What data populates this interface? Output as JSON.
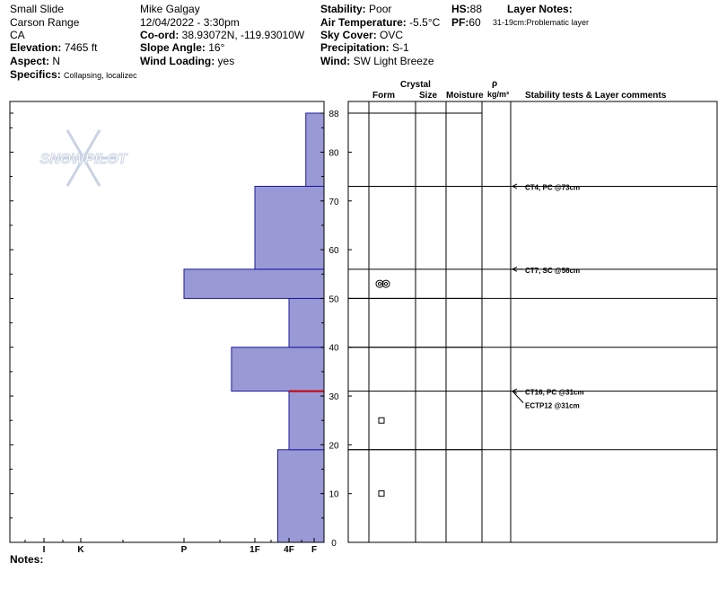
{
  "header": {
    "col1": {
      "title": "Small Slide",
      "range": "Carson Range",
      "state": "CA",
      "elevation_label": "Elevation:",
      "elevation_value": "7465 ft",
      "aspect_label": "Aspect:",
      "aspect_value": "N",
      "specifics_label": "Specifics:",
      "specifics_value": "Collapsing, localizec"
    },
    "col2": {
      "observer": "Mike Galgay",
      "datetime": "12/04/2022 - 3:30pm",
      "coord_label": "Co-ord:",
      "coord_value": "38.93072N, -119.93010W",
      "slope_label": "Slope Angle:",
      "slope_value": "16°",
      "wind_loading_label": "Wind Loading:",
      "wind_loading_value": "yes"
    },
    "col3": {
      "stability_label": "Stability:",
      "stability_value": "Poor",
      "air_temp_label": "Air Temperature:",
      "air_temp_value": "-5.5°C",
      "sky_label": "Sky Cover:",
      "sky_value": "OVC",
      "precip_label": "Precipitation:",
      "precip_value": "S-1",
      "wind_label": "Wind:",
      "wind_value": "SW Light Breeze"
    },
    "col4": {
      "hs_label": "HS:",
      "hs_value": "88",
      "pf_label": "PF:",
      "pf_value": "60"
    },
    "col5": {
      "layer_notes_label": "Layer Notes:",
      "layer_note": "31-19cm:Problematic layer"
    }
  },
  "columns": {
    "crystal": "Crystal",
    "form": "Form",
    "size": "Size",
    "moisture": "Moisture",
    "rho": "ρ",
    "density_unit": "kg/m³",
    "stability": "Stability tests & Layer comments"
  },
  "logo_text": "SNOWPILOT",
  "notes_label": "Notes:",
  "colors": {
    "hardness_fill": "#9999d6",
    "hardness_edge": "#1a1a9e",
    "weak_layer": "#cc0000",
    "logo": "#c9d3e3"
  },
  "chart_data": {
    "type": "bar",
    "orientation": "horizontal-step",
    "y_axis": {
      "label": "",
      "range": [
        0,
        88
      ],
      "ticks": [
        0,
        10,
        20,
        30,
        40,
        50,
        60,
        70,
        80,
        88
      ]
    },
    "x_axis": {
      "label": "",
      "ticks": [
        "I",
        "K",
        "P",
        "1F",
        "4F",
        "F"
      ],
      "ordered_hardness": [
        "F",
        "4F",
        "1F",
        "P",
        "K",
        "I"
      ]
    },
    "layers": [
      {
        "bottom": 0,
        "top": 19,
        "hardness": "4F+"
      },
      {
        "bottom": 19,
        "top": 31,
        "hardness": "4F"
      },
      {
        "bottom": 31,
        "top": 40,
        "hardness": "1F+"
      },
      {
        "bottom": 40,
        "top": 50,
        "hardness": "4F"
      },
      {
        "bottom": 50,
        "top": 56,
        "hardness": "P"
      },
      {
        "bottom": 56,
        "top": 73,
        "hardness": "1F"
      },
      {
        "bottom": 73,
        "top": 88,
        "hardness": "F+"
      }
    ],
    "weak_layer_depth": 31,
    "crystal_symbols": [
      {
        "height": 53,
        "form": "double-ring"
      },
      {
        "height": 25,
        "form": "square"
      },
      {
        "height": 10,
        "form": "square"
      }
    ],
    "stability_tests": [
      {
        "text": "CT4, PC @73cm",
        "height": 73
      },
      {
        "text": "CT7, SC @56cm",
        "height": 56
      },
      {
        "text": "CT16, PC @31cm",
        "height": 31
      },
      {
        "text": "ECTP12 @31cm",
        "height": 31
      }
    ]
  }
}
